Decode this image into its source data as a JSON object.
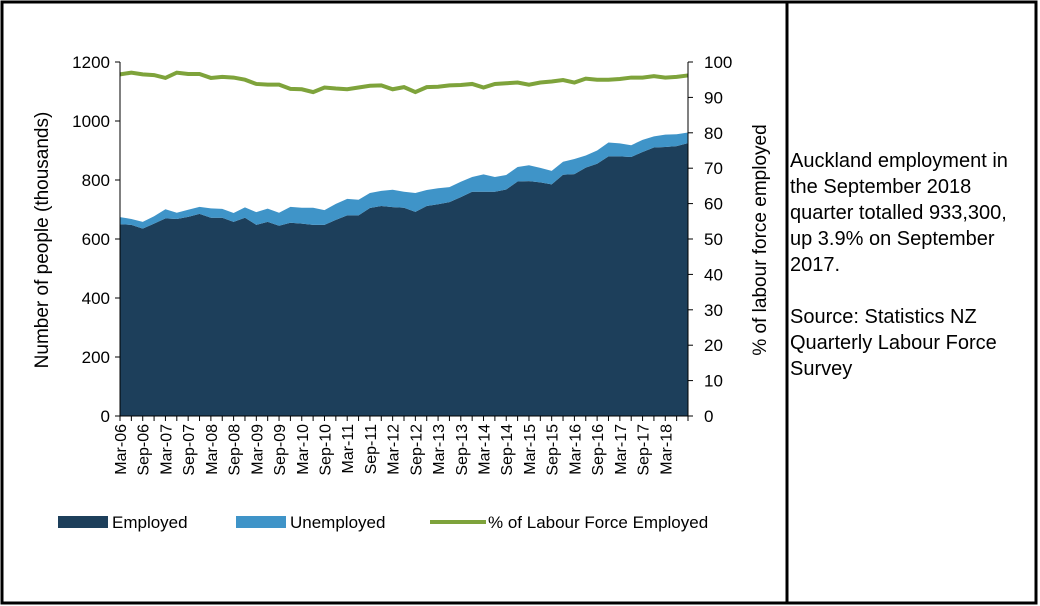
{
  "chart_data": {
    "type": "stacked_area_line",
    "categories": [
      "Mar-06",
      null,
      "Sep-06",
      null,
      "Mar-07",
      null,
      "Sep-07",
      null,
      "Mar-08",
      null,
      "Sep-08",
      null,
      "Mar-09",
      null,
      "Sep-09",
      null,
      "Mar-10",
      null,
      "Sep-10",
      null,
      "Mar-11",
      null,
      "Sep-11",
      null,
      "Mar-12",
      null,
      "Sep-12",
      null,
      "Mar-13",
      null,
      "Sep-13",
      null,
      "Mar-14",
      null,
      "Sep-14",
      null,
      "Mar-15",
      null,
      "Sep-15",
      null,
      "Mar-16",
      null,
      "Sep-16",
      null,
      "Mar-17",
      null,
      "Sep-17",
      null,
      "Mar-18",
      null,
      null
    ],
    "series": [
      {
        "name": "Employed",
        "color": "#1d3f5b",
        "values": [
          650,
          648,
          635,
          652,
          670,
          668,
          675,
          685,
          672,
          672,
          658,
          672,
          648,
          658,
          645,
          655,
          652,
          648,
          648,
          665,
          680,
          680,
          705,
          712,
          708,
          706,
          692,
          712,
          718,
          725,
          742,
          760,
          760,
          760,
          768,
          795,
          796,
          792,
          785,
          818,
          820,
          842,
          855,
          880,
          880,
          878,
          895,
          910,
          912,
          915,
          925
        ]
      },
      {
        "name": "Unemployed",
        "color": "#3f94c8",
        "values": [
          24,
          20,
          23,
          25,
          31,
          21,
          24,
          24,
          32,
          30,
          30,
          35,
          43,
          45,
          44,
          54,
          54,
          58,
          50,
          54,
          56,
          53,
          51,
          51,
          59,
          54,
          64,
          54,
          54,
          51,
          52,
          50,
          59,
          50,
          49,
          49,
          54,
          49,
          46,
          44,
          51,
          41,
          45,
          47,
          44,
          40,
          41,
          38,
          42,
          40,
          36
        ]
      },
      {
        "name": "% of Labour Force Employed",
        "color": "#7ea33b",
        "axis": "y2",
        "values": [
          96.5,
          97,
          96.5,
          96.3,
          95.5,
          97,
          96.6,
          96.6,
          95.5,
          95.8,
          95.6,
          95,
          93.8,
          93.6,
          93.6,
          92.4,
          92.3,
          91.5,
          92.8,
          92.5,
          92.3,
          92.8,
          93.3,
          93.4,
          92.3,
          92.9,
          91.5,
          92.9,
          93,
          93.4,
          93.5,
          93.8,
          92.8,
          93.8,
          94,
          94.2,
          93.6,
          94.2,
          94.5,
          94.9,
          94.2,
          95.3,
          95,
          95,
          95.2,
          95.6,
          95.6,
          96,
          95.6,
          95.8,
          96.2
        ]
      }
    ],
    "y_label": "Number of people (thousands)",
    "y2_label": "% of labour force employed",
    "ylim": [
      0,
      1200
    ],
    "yticks": [
      0,
      200,
      400,
      600,
      800,
      1000,
      1200
    ],
    "y2lim": [
      0,
      100
    ],
    "y2ticks": [
      0,
      10,
      20,
      30,
      40,
      50,
      60,
      70,
      80,
      90,
      100
    ],
    "grid": false,
    "legend": "bottom"
  },
  "side_text": {
    "summary": "Auckland employment in the September 2018 quarter totalled 933,300, up 3.9% on September 2017.",
    "source": "Source: Statistics NZ Quarterly Labour Force Survey"
  }
}
